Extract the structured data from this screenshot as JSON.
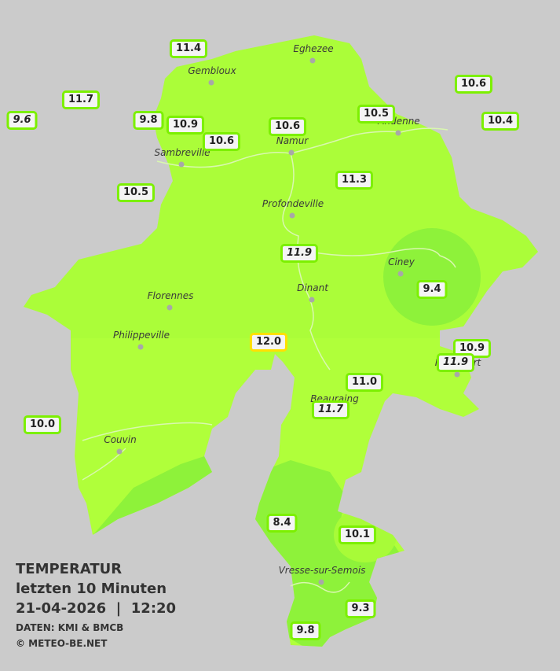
{
  "legend": {
    "title": "TEMPERATUR",
    "period": "letzten 10 Minuten",
    "datetime": "21-04-2026  |  12:20",
    "source": "DATEN: KMI & BMCB",
    "copyright": "© METEO-BE.NET"
  },
  "cities": [
    "Eghezee",
    "Gembloux",
    "Andenne",
    "Namur",
    "Sambreville",
    "Profondeville",
    "Ciney",
    "Dinant",
    "Florennes",
    "Philippeville",
    "Rochefort",
    "Beauraing",
    "Couvin",
    "Vresse-sur-Semois"
  ],
  "stations": [
    "11.4",
    "11.7",
    "9.6",
    "9.8",
    "10.9",
    "10.6",
    "10.6",
    "10.5",
    "10.6",
    "10.4",
    "10.5",
    "11.3",
    "11.9",
    "9.4",
    "12.0",
    "10.9",
    "11.9",
    "11.0",
    "11.7",
    "10.0",
    "8.4",
    "10.1",
    "9.3",
    "9.8"
  ]
}
